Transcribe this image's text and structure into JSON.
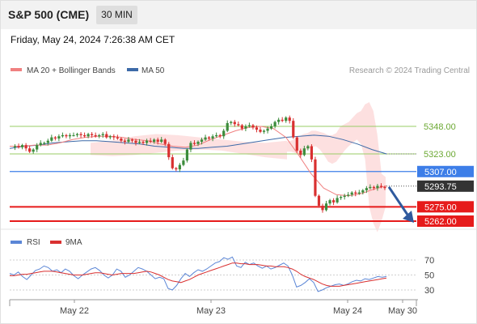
{
  "header": {
    "title": "S&P 500 (CME)",
    "timeframe": "30 MIN"
  },
  "timestamp": "Friday, May 24, 2024 7:26:38 AM CET",
  "credit": "Research © 2024 Trading Central",
  "colors": {
    "candle_up": "#3c8c3c",
    "candle_down": "#d93030",
    "ma20": "#f08080",
    "bollinger": "#fddada",
    "ma50": "#3d6aa8",
    "green_level": "#99cc66",
    "blue_level": "#3d7ee8",
    "red_level": "#e61b1b",
    "rsi": "#5b86d6",
    "rsi_9ma": "#d93030",
    "current_label": "#333333"
  },
  "chart_data": [
    {
      "type": "candlestick",
      "title": "S&P 500 (CME) 30 MIN",
      "legend": [
        {
          "name": "MA 20 + Bollinger Bands",
          "color": "#f08080"
        },
        {
          "name": "MA 50",
          "color": "#3d6aa8"
        }
      ],
      "legend_position": "top-left",
      "x_ticks": [
        "May 22",
        "May 23",
        "May 24",
        "May 30"
      ],
      "ylim": [
        5245,
        5365
      ],
      "current_price": 5293.75,
      "levels": [
        {
          "label": "5348.00",
          "value": 5348.0,
          "style": "green"
        },
        {
          "label": "5323.00",
          "value": 5323.0,
          "style": "green"
        },
        {
          "label": "5307.00",
          "value": 5307.0,
          "style": "blue"
        },
        {
          "label": "5293.75",
          "value": 5293.75,
          "style": "current"
        },
        {
          "label": "5275.00",
          "value": 5275.0,
          "style": "red"
        },
        {
          "label": "5262.00",
          "value": 5262.0,
          "style": "red"
        }
      ],
      "forecast_arrow": {
        "from": 5293.75,
        "to": 5262.0
      },
      "close_path": [
        5329,
        5330,
        5329,
        5331,
        5328,
        5325,
        5327,
        5331,
        5333,
        5333,
        5335,
        5338,
        5337,
        5339,
        5340,
        5339,
        5340,
        5340,
        5341,
        5340,
        5339,
        5341,
        5340,
        5339,
        5340,
        5341,
        5338,
        5339,
        5338,
        5337,
        5335,
        5334,
        5336,
        5335,
        5333,
        5334,
        5333,
        5335,
        5334,
        5336,
        5334,
        5336,
        5332,
        5320,
        5310,
        5309,
        5313,
        5317,
        5327,
        5333,
        5332,
        5334,
        5336,
        5338,
        5337,
        5339,
        5340,
        5339,
        5344,
        5351,
        5352,
        5350,
        5349,
        5346,
        5348,
        5349,
        5347,
        5345,
        5343,
        5344,
        5346,
        5348,
        5352,
        5354,
        5353,
        5356,
        5353,
        5338,
        5326,
        5322,
        5328,
        5330,
        5318,
        5285,
        5276,
        5272,
        5278,
        5281,
        5279,
        5283,
        5284,
        5285,
        5286,
        5288,
        5287,
        5288,
        5290,
        5292,
        5293,
        5292,
        5294,
        5293,
        5292
      ],
      "ma20_path": [
        5330,
        5330,
        5331,
        5331,
        5333,
        5336,
        5338,
        5339,
        5339,
        5338,
        5336,
        5335,
        5332,
        5330,
        5329,
        5331,
        5336,
        5340,
        5344,
        5347,
        5348,
        5346,
        5338,
        5322,
        5305,
        5292,
        5286,
        5285,
        5287,
        5291,
        5294
      ],
      "ma50_path": [
        5328,
        5330,
        5331,
        5333,
        5334,
        5335,
        5335,
        5334,
        5333,
        5332,
        5330,
        5329,
        5328,
        5328,
        5329,
        5330,
        5332,
        5334,
        5336,
        5338,
        5339,
        5340,
        5339,
        5336,
        5332,
        5327,
        5323
      ],
      "bollinger_upper": [
        5334,
        5335,
        5337,
        5339,
        5341,
        5342,
        5344,
        5344,
        5343,
        5342,
        5340,
        5340,
        5342,
        5348,
        5350,
        5352,
        5356,
        5360,
        5362,
        5368,
        5370,
        5362,
        5340,
        5305,
        5302
      ],
      "bollinger_lower": [
        5325,
        5325,
        5324,
        5323,
        5325,
        5327,
        5329,
        5330,
        5327,
        5322,
        5316,
        5314,
        5316,
        5321,
        5326,
        5330,
        5333,
        5336,
        5332,
        5318,
        5275,
        5260,
        5252,
        5262,
        5275
      ]
    },
    {
      "type": "line",
      "title": "RSI",
      "legend": [
        {
          "name": "RSI",
          "color": "#5b86d6"
        },
        {
          "name": "9MA",
          "color": "#d93030"
        }
      ],
      "legend_position": "top-left",
      "y_ticks": [
        30,
        50,
        70
      ],
      "ylim": [
        20,
        80
      ],
      "series": [
        {
          "name": "RSI",
          "values": [
            52,
            50,
            54,
            48,
            44,
            50,
            56,
            58,
            62,
            60,
            55,
            57,
            53,
            58,
            55,
            49,
            45,
            50,
            54,
            58,
            60,
            56,
            50,
            46,
            50,
            58,
            55,
            47,
            50,
            55,
            60,
            58,
            55,
            50,
            45,
            47,
            45,
            32,
            30,
            36,
            45,
            52,
            48,
            53,
            57,
            55,
            58,
            62,
            66,
            68,
            73,
            71,
            74,
            62,
            60,
            67,
            64,
            66,
            62,
            59,
            62,
            58,
            60,
            63,
            66,
            62,
            50,
            34,
            36,
            40,
            45,
            40,
            28,
            30,
            33,
            35,
            37,
            38,
            36,
            38,
            41,
            43,
            42,
            45,
            44,
            46,
            48,
            47,
            48
          ]
        },
        {
          "name": "9MA",
          "values": [
            49,
            49,
            50,
            51,
            51,
            52,
            53,
            54,
            55,
            55,
            55,
            54,
            53,
            52,
            51,
            50,
            50,
            50,
            51,
            52,
            53,
            53,
            52,
            51,
            50,
            51,
            52,
            52,
            52,
            52,
            53,
            54,
            55,
            54,
            52,
            50,
            47,
            44,
            42,
            41,
            40,
            42,
            44,
            47,
            50,
            52,
            54,
            56,
            58,
            60,
            62,
            64,
            66,
            66,
            65,
            65,
            64,
            64,
            64,
            63,
            62,
            62,
            61,
            61,
            61,
            60,
            58,
            55,
            51,
            48,
            46,
            44,
            41,
            38,
            36,
            35,
            35,
            35,
            36,
            37,
            38,
            39,
            40,
            41,
            42,
            43,
            44,
            45,
            46
          ]
        }
      ]
    }
  ]
}
